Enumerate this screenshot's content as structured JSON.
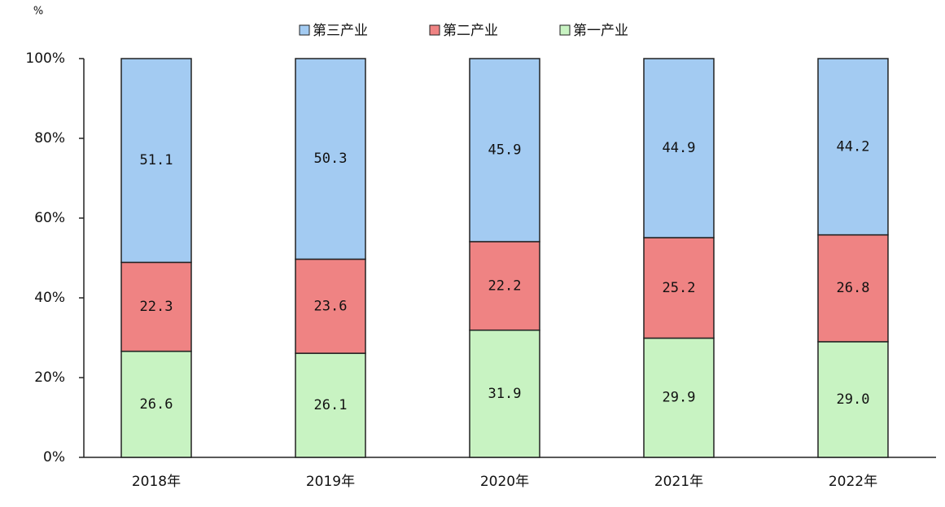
{
  "chart_data": {
    "type": "stacked_bar_100",
    "y_unit": "%",
    "categories": [
      "2018年",
      "2019年",
      "2020年",
      "2021年",
      "2022年"
    ],
    "series": [
      {
        "name": "第三产业",
        "color": "#a3cbf2",
        "values": [
          51.1,
          50.3,
          45.9,
          44.9,
          44.2
        ]
      },
      {
        "name": "第二产业",
        "color": "#ef8383",
        "values": [
          22.3,
          23.6,
          22.2,
          25.2,
          26.8
        ]
      },
      {
        "name": "第一产业",
        "color": "#c8f3c2",
        "values": [
          26.6,
          26.1,
          31.9,
          29.9,
          29.0
        ],
        "value_labels": [
          "26.6",
          "26.1",
          "31.9",
          "29.9",
          "29.0"
        ]
      }
    ],
    "ylim": [
      0,
      100
    ],
    "yticks": [
      {
        "value": 0,
        "label": "0%"
      },
      {
        "value": 20,
        "label": "20%"
      },
      {
        "value": 40,
        "label": "40%"
      },
      {
        "value": 60,
        "label": "60%"
      },
      {
        "value": 80,
        "label": "80%"
      },
      {
        "value": 100,
        "label": "100%"
      }
    ],
    "legend": "top"
  }
}
